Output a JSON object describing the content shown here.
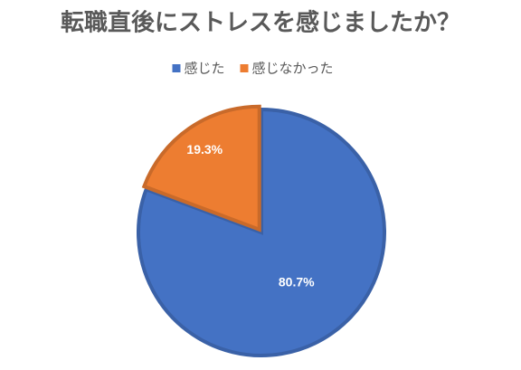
{
  "chart_data": {
    "type": "pie",
    "title": "転職直後にストレスを感じましたか？",
    "categories": [
      "感じた",
      "感じなかった"
    ],
    "values": [
      80.7,
      19.3
    ],
    "value_labels": [
      "80.7%",
      "19.3%"
    ],
    "colors": [
      "#4472c4",
      "#ed7d31"
    ],
    "legend": "top"
  }
}
